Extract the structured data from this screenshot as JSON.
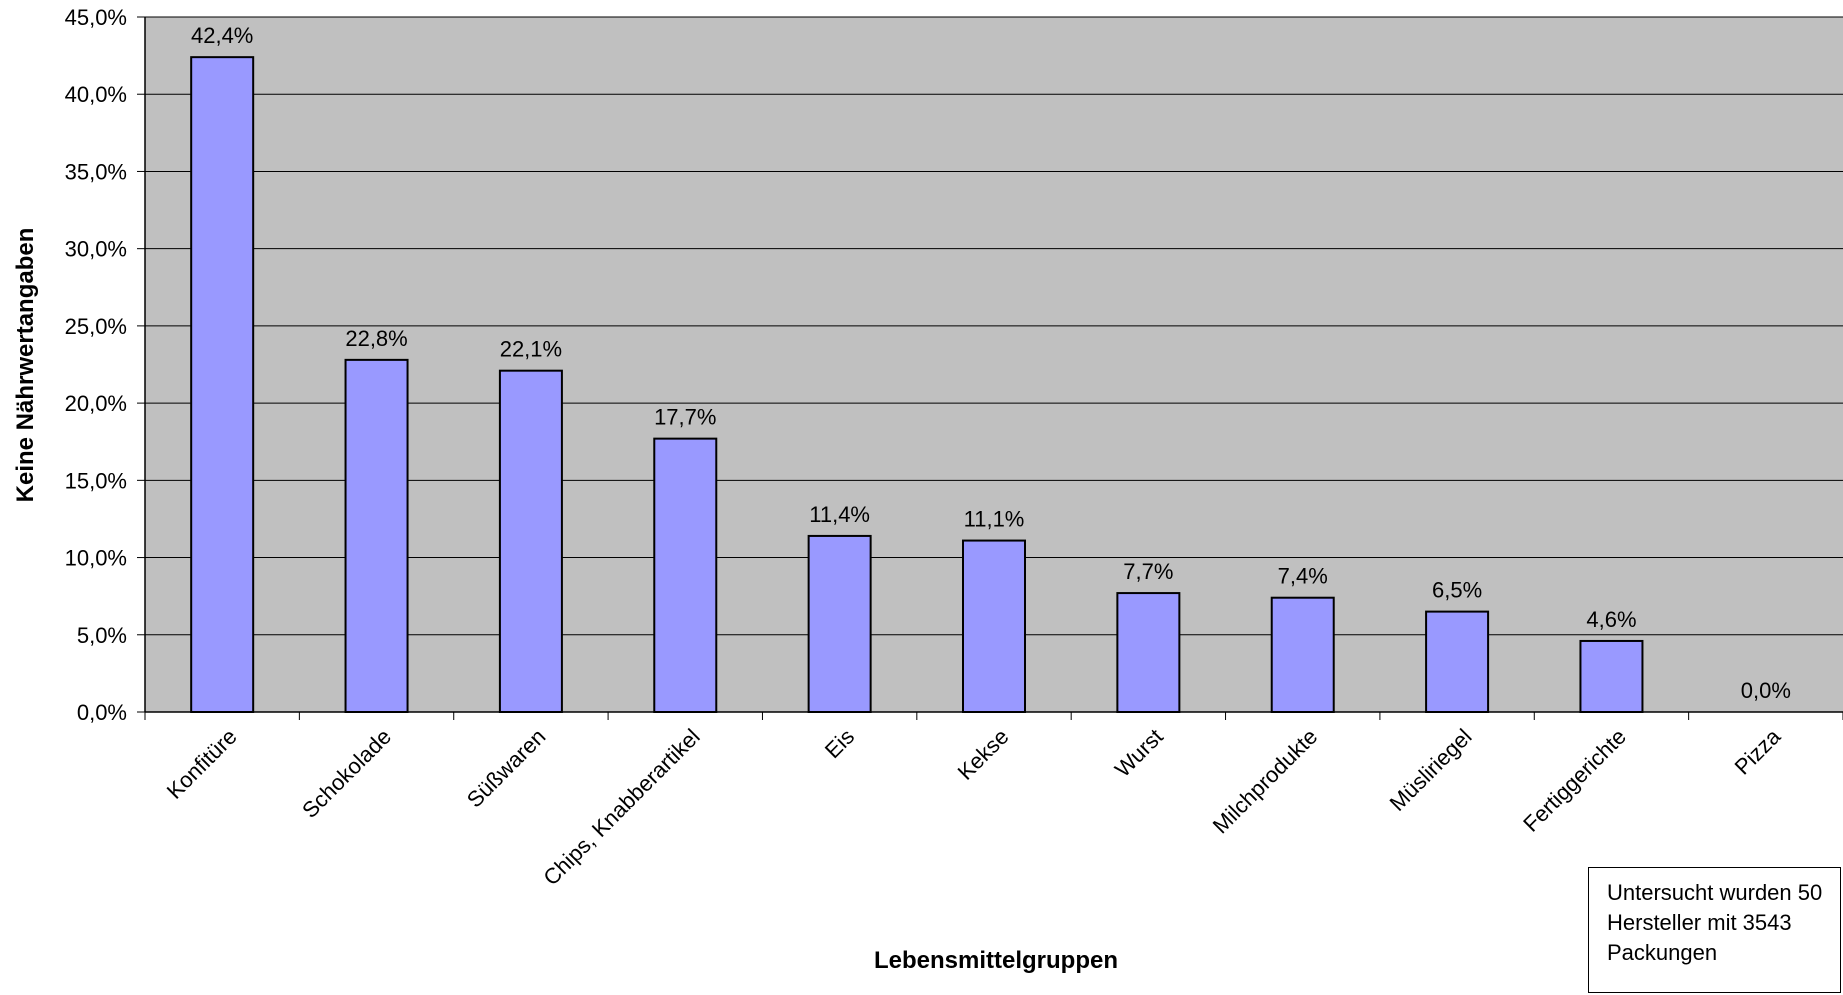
{
  "chart_data": {
    "type": "bar",
    "categories": [
      "Konfitüre",
      "Schokolade",
      "Süßwaren",
      "Chips, Knabberartikel",
      "Eis",
      "Kekse",
      "Wurst",
      "Milchprodukte",
      "Müsliriegel",
      "Fertiggerichte",
      "Pizza"
    ],
    "values": [
      42.4,
      22.8,
      22.1,
      17.7,
      11.4,
      11.1,
      7.7,
      7.4,
      6.5,
      4.6,
      0.0
    ],
    "data_labels": [
      "42,4%",
      "22,8%",
      "22,1%",
      "17,7%",
      "11,4%",
      "11,1%",
      "7,7%",
      "7,4%",
      "6,5%",
      "4,6%",
      "0,0%"
    ],
    "yticks": [
      "0,0%",
      "5,0%",
      "10,0%",
      "15,0%",
      "20,0%",
      "25,0%",
      "30,0%",
      "35,0%",
      "40,0%",
      "45,0%"
    ],
    "ylim": [
      0,
      45
    ],
    "xlabel": "Lebensmittelgruppen",
    "ylabel": "Keine Nährwertangaben",
    "grid": true,
    "colors": {
      "bar": "#9999FF",
      "plot_bg": "#C0C0C0",
      "grid": "#000000",
      "page_bg": "#FFFFFF"
    }
  },
  "note": {
    "lines": [
      "Untersucht wurden  50",
      "Hersteller mit 3543",
      "Packungen"
    ]
  }
}
